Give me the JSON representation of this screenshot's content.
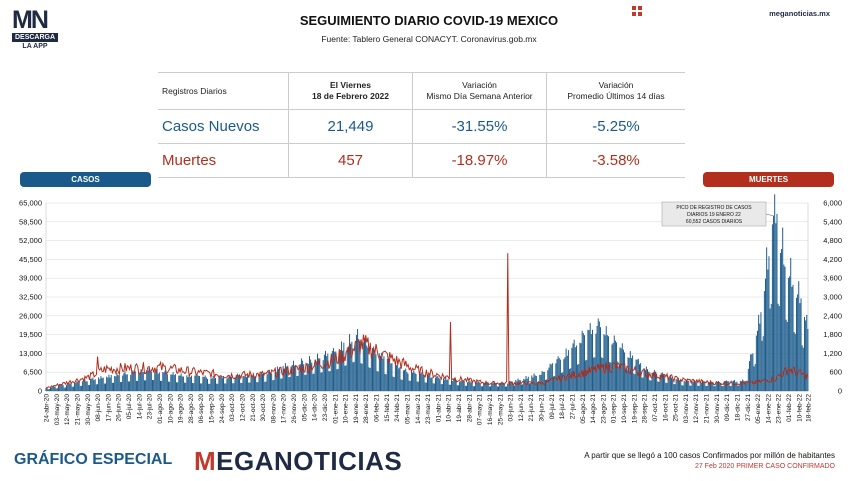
{
  "header": {
    "logo_main": "MN",
    "logo_sub": "DESCARGA",
    "logo_app": "LA APP",
    "title": "SEGUIMIENTO DIARIO COVID-19 MEXICO",
    "source": "Fuente: Tablero General CONACYT. Coronavirus.gob.mx",
    "site": "meganoticias.mx"
  },
  "table": {
    "col1": "Registros Diarios",
    "col2_line1": "El Viernes",
    "col2_line2": "18 de Febrero 2022",
    "col3_line1": "Variación",
    "col3_line2": "Mismo Día Semana Anterior",
    "col4_line1": "Variación",
    "col4_line2": "Promedio Últimos 14 días",
    "rows": [
      {
        "label": "Casos Nuevos",
        "value": "21,449",
        "var_week": "-31.55%",
        "var_avg": "-5.25%"
      },
      {
        "label": "Muertes",
        "value": "457",
        "var_week": "-18.97%",
        "var_avg": "-3.58%"
      }
    ]
  },
  "legend": {
    "cases": "CASOS",
    "deaths": "MUERTES"
  },
  "annotation": {
    "line1": "PICO DE REGISTRO DE CASOS",
    "line2": "DIARIOS 19 ENERO 22",
    "line3": "60,552 CASOS DIARIOS"
  },
  "footer": {
    "left": "GRÁFICO ESPECIAL",
    "brand_m": "M",
    "brand_rest": "EGANOTICIAS",
    "note1": "A partir que se llegó a 100 casos Confirmados por millón de habitantes",
    "note2": "27 Feb 2020 PRIMER CASO CONFIRMADO"
  },
  "colors": {
    "cases": "#1a5a8a",
    "deaths": "#b22f1e",
    "grid": "#d8d8d8"
  },
  "chart_data": {
    "type": "bar",
    "title": "SEGUIMIENTO DIARIO COVID-19 MEXICO",
    "y_left_ticks": [
      "0",
      "6,500",
      "13,000",
      "19,500",
      "26,000",
      "32,500",
      "39,000",
      "45,500",
      "52,000",
      "58,500",
      "65,000"
    ],
    "y_right_ticks": [
      "0",
      "600",
      "1,200",
      "1,800",
      "2,400",
      "3,000",
      "3,600",
      "4,200",
      "4,800",
      "5,400",
      "6,000"
    ],
    "ylim_left": [
      0,
      65000
    ],
    "ylim_right": [
      0,
      6000
    ],
    "x_start": "24-abr-20",
    "x_end": "18-feb-22",
    "x_tick_labels": [
      "24-abr-20",
      "03-may-20",
      "12-may-20",
      "21-may-20",
      "30-may-20",
      "08-jun-20",
      "17-jun-20",
      "26-jun-20",
      "05-jul-20",
      "14-jul-20",
      "23-jul-20",
      "01-ago-20",
      "10-ago-20",
      "19-ago-20",
      "28-ago-20",
      "06-sep-20",
      "15-sep-20",
      "24-sep-20",
      "03-oct-20",
      "12-oct-20",
      "21-oct-20",
      "30-oct-20",
      "08-nov-20",
      "17-nov-20",
      "26-nov-20",
      "05-dic-20",
      "14-dic-20",
      "23-dic-20",
      "01-ene-21",
      "10-ene-21",
      "19-ene-21",
      "28-ene-21",
      "06-feb-21",
      "15-feb-21",
      "24-feb-21",
      "05-mar-21",
      "14-mar-21",
      "23-mar-21",
      "01-abr-21",
      "10-abr-21",
      "19-abr-21",
      "28-abr-21",
      "07-may-21",
      "16-may-21",
      "25-may-21",
      "03-jun-21",
      "12-jun-21",
      "21-jun-21",
      "30-jun-21",
      "09-jul-21",
      "18-jul-21",
      "27-jul-21",
      "05-ago-21",
      "14-ago-21",
      "23-ago-21",
      "01-sep-21",
      "10-sep-21",
      "19-sep-21",
      "28-sep-21",
      "07-oct-21",
      "16-oct-21",
      "25-oct-21",
      "03-nov-21",
      "12-nov-21",
      "21-nov-21",
      "30-nov-21",
      "09-dic-21",
      "18-dic-21",
      "27-dic-21",
      "05-ene-22",
      "14-ene-22",
      "23-ene-22",
      "01-feb-22",
      "10-feb-22",
      "18-feb-22"
    ],
    "series": [
      {
        "name": "CASOS",
        "axis": "left",
        "type": "bar",
        "anchors": [
          [
            "24-abr-20",
            1000
          ],
          [
            "15-may-20",
            2500
          ],
          [
            "01-jun-20",
            3800
          ],
          [
            "01-jul-20",
            5800
          ],
          [
            "25-jul-20",
            7000
          ],
          [
            "15-ago-20",
            5500
          ],
          [
            "15-sep-20",
            4500
          ],
          [
            "10-oct-20",
            5000
          ],
          [
            "01-nov-20",
            5800
          ],
          [
            "20-nov-20",
            8500
          ],
          [
            "15-dic-20",
            11000
          ],
          [
            "01-ene-21",
            13000
          ],
          [
            "20-ene-21",
            19000
          ],
          [
            "05-feb-21",
            13000
          ],
          [
            "01-mar-21",
            7000
          ],
          [
            "01-abr-21",
            4500
          ],
          [
            "01-may-21",
            3000
          ],
          [
            "01-jun-21",
            2800
          ],
          [
            "01-jul-21",
            6000
          ],
          [
            "20-jul-21",
            12000
          ],
          [
            "10-ago-21",
            20000
          ],
          [
            "20-ago-21",
            22000
          ],
          [
            "01-sep-21",
            17000
          ],
          [
            "01-oct-21",
            7000
          ],
          [
            "01-nov-21",
            3500
          ],
          [
            "01-dic-21",
            3000
          ],
          [
            "25-dic-21",
            3500
          ],
          [
            "05-ene-22",
            20000
          ],
          [
            "19-ene-22",
            60552
          ],
          [
            "01-feb-22",
            42000
          ],
          [
            "10-feb-22",
            33000
          ],
          [
            "18-feb-22",
            21449
          ]
        ]
      },
      {
        "name": "MUERTES",
        "axis": "right",
        "type": "line",
        "anchors": [
          [
            "24-abr-20",
            100
          ],
          [
            "01-jun-20",
            450
          ],
          [
            "15-jun-20",
            700
          ],
          [
            "01-jul-20",
            720
          ],
          [
            "01-ago-20",
            750
          ],
          [
            "01-sep-20",
            600
          ],
          [
            "01-oct-20",
            500
          ],
          [
            "01-nov-20",
            530
          ],
          [
            "01-dic-20",
            700
          ],
          [
            "01-ene-21",
            1000
          ],
          [
            "25-ene-21",
            1500
          ],
          [
            "15-feb-21",
            1100
          ],
          [
            "15-mar-21",
            650
          ],
          [
            "15-abr-21",
            400
          ],
          [
            "15-may-21",
            250
          ],
          [
            "01-jul-21",
            250
          ],
          [
            "01-ago-21",
            550
          ],
          [
            "01-sep-21",
            800
          ],
          [
            "01-oct-21",
            550
          ],
          [
            "01-nov-21",
            350
          ],
          [
            "01-dic-21",
            250
          ],
          [
            "01-ene-22",
            250
          ],
          [
            "20-ene-22",
            400
          ],
          [
            "01-feb-22",
            700
          ],
          [
            "18-feb-22",
            457
          ]
        ],
        "spikes": [
          [
            "08-jun-20",
            1100
          ],
          [
            "12-abr-21",
            2200
          ],
          [
            "01-jun-21",
            4400
          ]
        ]
      }
    ]
  }
}
